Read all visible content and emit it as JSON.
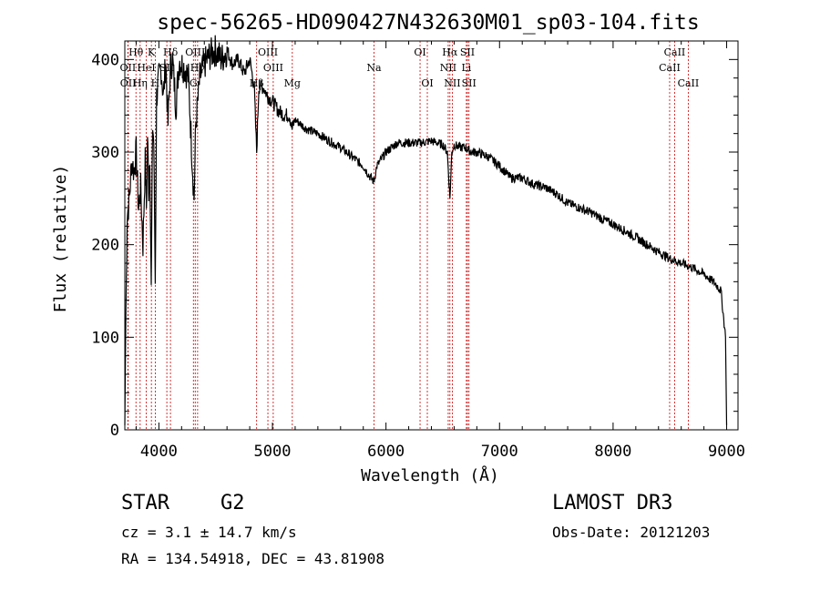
{
  "chart_data": {
    "type": "line",
    "title": "spec-56265-HD090427N432630M01_sp03-104.fits",
    "xlabel": "Wavelength (Å)",
    "ylabel": "Flux (relative)",
    "xlim": [
      3700,
      9100
    ],
    "ylim": [
      0,
      420
    ],
    "xticks": [
      4000,
      5000,
      6000,
      7000,
      8000,
      9000
    ],
    "yticks": [
      0,
      100,
      200,
      300,
      400
    ],
    "series": [
      {
        "name": "spectrum",
        "x": [
          3700,
          3710,
          3720,
          3740,
          3760,
          3780,
          3800,
          3820,
          3840,
          3860,
          3880,
          3890,
          3900,
          3910,
          3920,
          3933,
          3945,
          3955,
          3968,
          3980,
          3990,
          4000,
          4020,
          4040,
          4060,
          4080,
          4101,
          4120,
          4150,
          4180,
          4200,
          4230,
          4260,
          4290,
          4310,
          4325,
          4340,
          4360,
          4400,
          4450,
          4500,
          4550,
          4600,
          4650,
          4700,
          4750,
          4800,
          4840,
          4861,
          4880,
          4920,
          4960,
          5000,
          5050,
          5100,
          5150,
          5172,
          5200,
          5300,
          5400,
          5500,
          5600,
          5700,
          5800,
          5850,
          5893,
          5920,
          6000,
          6100,
          6200,
          6300,
          6400,
          6500,
          6540,
          6563,
          6580,
          6600,
          6650,
          6700,
          6750,
          6800,
          6900,
          7000,
          7100,
          7200,
          7300,
          7400,
          7500,
          7600,
          7700,
          7800,
          7900,
          8000,
          8100,
          8200,
          8300,
          8400,
          8500,
          8600,
          8700,
          8800,
          8900,
          8950,
          8990,
          9000
        ],
        "y": [
          5,
          130,
          230,
          250,
          290,
          280,
          300,
          240,
          260,
          200,
          290,
          240,
          320,
          260,
          300,
          150,
          330,
          310,
          160,
          360,
          370,
          380,
          390,
          360,
          400,
          330,
          390,
          400,
          350,
          400,
          395,
          390,
          380,
          300,
          250,
          330,
          350,
          380,
          395,
          405,
          410,
          400,
          410,
          395,
          400,
          385,
          400,
          370,
          300,
          370,
          370,
          360,
          355,
          345,
          340,
          340,
          325,
          335,
          325,
          320,
          312,
          305,
          295,
          285,
          275,
          268,
          285,
          300,
          310,
          310,
          310,
          312,
          308,
          300,
          250,
          300,
          308,
          305,
          305,
          300,
          300,
          295,
          285,
          272,
          272,
          265,
          262,
          255,
          245,
          240,
          235,
          228,
          222,
          215,
          208,
          200,
          192,
          185,
          180,
          175,
          168,
          158,
          150,
          100,
          5
        ]
      }
    ],
    "lines": [
      {
        "name": "Hθ",
        "x": 3798,
        "row": 1
      },
      {
        "name": "OII",
        "x": 3727,
        "row": 2
      },
      {
        "name": "OII",
        "x": 3729,
        "row": 3
      },
      {
        "name": "Hη",
        "x": 3835,
        "row": 3
      },
      {
        "name": "HeI",
        "x": 3889,
        "row": 2
      },
      {
        "name": "K",
        "x": 3934,
        "row": 1
      },
      {
        "name": "SII",
        "x": 4070,
        "row": 2
      },
      {
        "name": "Hδ",
        "x": 4102,
        "row": 1
      },
      {
        "name": "H",
        "x": 3968,
        "row": 3
      },
      {
        "name": "OIII",
        "x": 4320,
        "row": 1
      },
      {
        "name": "Hγ",
        "x": 4341,
        "row": 2
      },
      {
        "name": "G",
        "x": 4304,
        "row": 3
      },
      {
        "name": "OIII",
        "x": 4960,
        "row": 1
      },
      {
        "name": "OIII",
        "x": 5007,
        "row": 2
      },
      {
        "name": "Hβ",
        "x": 4861,
        "row": 3
      },
      {
        "name": "Mg",
        "x": 5175,
        "row": 3
      },
      {
        "name": "Na",
        "x": 5894,
        "row": 2
      },
      {
        "name": "OI",
        "x": 6300,
        "row": 1
      },
      {
        "name": "OI",
        "x": 6364,
        "row": 3
      },
      {
        "name": "Hα",
        "x": 6563,
        "row": 1
      },
      {
        "name": "NII",
        "x": 6548,
        "row": 2
      },
      {
        "name": "NII",
        "x": 6584,
        "row": 3
      },
      {
        "name": "SII",
        "x": 6717,
        "row": 1
      },
      {
        "name": "Li",
        "x": 6708,
        "row": 2
      },
      {
        "name": "SII",
        "x": 6731,
        "row": 3
      },
      {
        "name": "CaII",
        "x": 8542,
        "row": 1
      },
      {
        "name": "CaII",
        "x": 8498,
        "row": 2
      },
      {
        "name": "CaII",
        "x": 8662,
        "row": 3
      }
    ],
    "line_color": "#cc0000"
  },
  "info": {
    "object_class": "STAR",
    "subclass": "G2",
    "survey": "LAMOST DR3",
    "redshift_text": "cz = 3.1 ± 14.7 km/s",
    "obs_date_text": "Obs-Date: 20121203",
    "coords_text": "RA = 134.54918, DEC =  43.81908"
  }
}
